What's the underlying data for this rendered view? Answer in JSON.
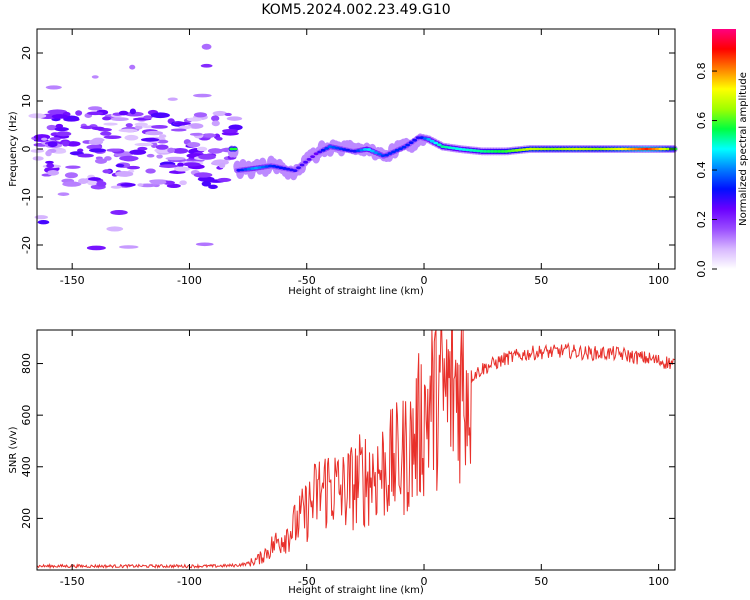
{
  "chart_data": [
    {
      "type": "heatmap",
      "title": "KOM5.2024.002.23.49.G10",
      "xlabel": "Height of straight line (km)",
      "ylabel": "Frequency (Hz)",
      "xlim": [
        -165,
        107
      ],
      "ylim": [
        -25,
        25
      ],
      "xticks": [
        -150,
        -100,
        -50,
        0,
        50,
        100
      ],
      "yticks": [
        -20,
        -10,
        0,
        10,
        20
      ],
      "colorbar": {
        "label": "Normalized spectral amplitude",
        "range": [
          0.0,
          0.97
        ],
        "ticks": [
          0.0,
          0.2,
          0.4,
          0.6,
          0.8
        ],
        "colors": [
          "#ffffff",
          "#d8b8ff",
          "#9a4dff",
          "#6a00ff",
          "#0010ff",
          "#0080ff",
          "#00ffff",
          "#00ff40",
          "#a0ff00",
          "#ffff00",
          "#ff8000",
          "#ff0000",
          "#ff0080"
        ]
      },
      "ridge": [
        {
          "x": -80,
          "y": -4.5,
          "v": 0.3
        },
        {
          "x": -72,
          "y": -4.0,
          "v": 0.45
        },
        {
          "x": -65,
          "y": -3.5,
          "v": 0.35
        },
        {
          "x": -55,
          "y": -4.5,
          "v": 0.3
        },
        {
          "x": -46,
          "y": -1.0,
          "v": 0.25
        },
        {
          "x": -40,
          "y": 0.5,
          "v": 0.4
        },
        {
          "x": -30,
          "y": -0.5,
          "v": 0.3
        },
        {
          "x": -24,
          "y": 0.0,
          "v": 0.5
        },
        {
          "x": -17,
          "y": -1.5,
          "v": 0.35
        },
        {
          "x": -8,
          "y": 0.5,
          "v": 0.35
        },
        {
          "x": -2,
          "y": 2.5,
          "v": 0.3
        },
        {
          "x": 2,
          "y": 2.0,
          "v": 0.45
        },
        {
          "x": 8,
          "y": 0.5,
          "v": 0.55
        },
        {
          "x": 15,
          "y": 0.0,
          "v": 0.5
        },
        {
          "x": 25,
          "y": -0.5,
          "v": 0.55
        },
        {
          "x": 35,
          "y": -0.5,
          "v": 0.6
        },
        {
          "x": 45,
          "y": 0.0,
          "v": 0.7
        },
        {
          "x": 55,
          "y": 0.0,
          "v": 0.65
        },
        {
          "x": 65,
          "y": 0.0,
          "v": 0.7
        },
        {
          "x": 75,
          "y": 0.0,
          "v": 0.65
        },
        {
          "x": 85,
          "y": 0.0,
          "v": 0.75
        },
        {
          "x": 95,
          "y": 0.0,
          "v": 0.9
        },
        {
          "x": 100,
          "y": 0.0,
          "v": 0.8
        },
        {
          "x": 106,
          "y": 0.0,
          "v": 0.6
        }
      ]
    },
    {
      "type": "line",
      "xlabel": "Height of straight line (km)",
      "ylabel": "SNR (v/v)",
      "xlim": [
        -165,
        107
      ],
      "ylim": [
        0,
        930
      ],
      "xticks": [
        -150,
        -100,
        -50,
        0,
        50,
        100
      ],
      "yticks": [
        200,
        400,
        600,
        800
      ],
      "color": "#e8302a",
      "series": [
        {
          "x": [
            -165,
            -140,
            -110,
            -90,
            -80,
            -75,
            -70,
            -65,
            -60,
            -55,
            -50,
            -45,
            -40,
            -35,
            -30,
            -25,
            -20,
            -15,
            -10,
            -5,
            0,
            5,
            10,
            15,
            20,
            25,
            30,
            35,
            40,
            45,
            50,
            55,
            60,
            65,
            70,
            75,
            80,
            85,
            90,
            95,
            100,
            107
          ],
          "values": [
            15,
            15,
            15,
            15,
            18,
            25,
            45,
            90,
            130,
            170,
            230,
            300,
            330,
            300,
            330,
            360,
            380,
            400,
            430,
            480,
            600,
            680,
            680,
            720,
            750,
            780,
            800,
            820,
            830,
            840,
            845,
            845,
            850,
            845,
            840,
            840,
            840,
            835,
            825,
            820,
            810,
            800
          ]
        }
      ]
    }
  ]
}
